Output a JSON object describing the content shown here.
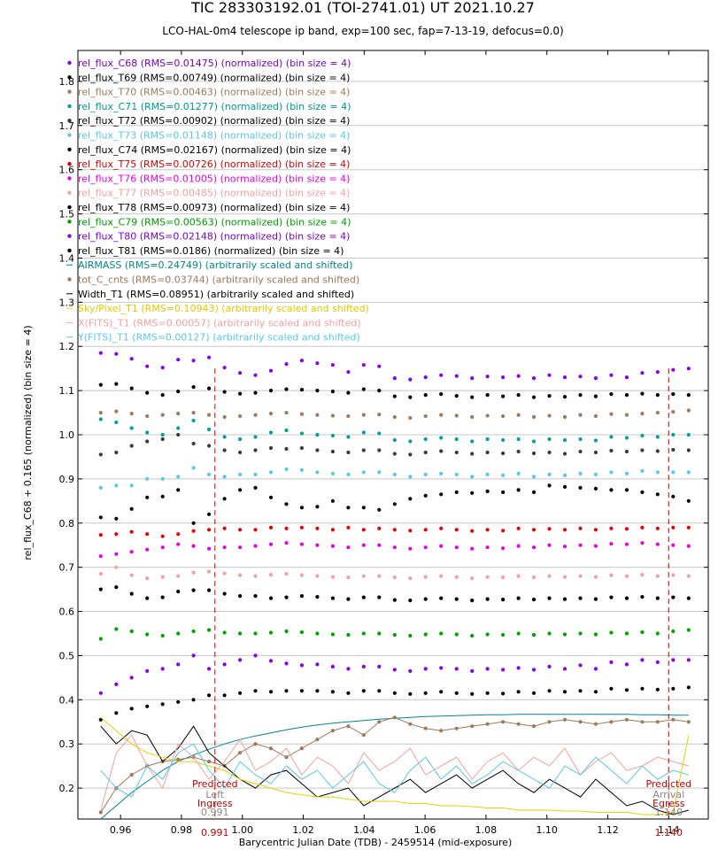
{
  "chart_data": {
    "type": "scatter",
    "title": "TIC 283303192.01 (TOI-2741.01) UT 2021.10.27",
    "subtitle": "LCO-HAL-0m4 telescope ip band, exp=100 sec, fap=7-13-19, defocus=0.0)",
    "xlabel": "Barycentric Julian Date (TDB) - 2459514 (mid-exposure)",
    "ylabel": "rel_flux_C68 + 0.165 (normalized) (bin size = 4)",
    "xlim": [
      0.946,
      1.153
    ],
    "ylim": [
      0.13,
      1.87
    ],
    "grid": true,
    "legend_position": "top-left",
    "x_ticks": [
      "0.96",
      "0.98",
      "1.00",
      "1.02",
      "1.04",
      "1.06",
      "1.08",
      "1.10",
      "1.12",
      "1.14"
    ],
    "y_ticks": [
      "0.2",
      "0.3",
      "0.4",
      "0.5",
      "0.6",
      "0.7",
      "0.8",
      "0.9",
      "1.0",
      "1.1",
      "1.2",
      "1.3",
      "1.4",
      "1.5",
      "1.6",
      "1.7",
      "1.8"
    ],
    "x_start": 0.9535,
    "x_step": 0.00508,
    "points_per_series": 39,
    "series": [
      {
        "name": "rel_flux_C68 (RMS=0.01475) (normalized) (bin size = 4)",
        "color": "#8a00e6",
        "text_color": "#7b00d4",
        "mode": "points",
        "base": 1.14,
        "values": [
          1.185,
          1.183,
          1.172,
          1.155,
          1.152,
          1.17,
          1.168,
          1.175,
          1.152,
          1.14,
          1.135,
          1.145,
          1.16,
          1.168,
          1.162,
          1.158,
          1.142,
          1.158,
          1.155,
          1.128,
          1.125,
          1.13,
          1.135,
          1.133,
          1.128,
          1.132,
          1.13,
          1.133,
          1.128,
          1.135,
          1.13,
          1.132,
          1.128,
          1.135,
          1.13,
          1.14,
          1.142,
          1.147,
          1.15
        ]
      },
      {
        "name": "rel_flux_T69 (RMS=0.00749) (normalized) (bin size = 4)",
        "color": "#000000",
        "text_color": "#000000",
        "mode": "points",
        "base": 1.09,
        "values": [
          1.113,
          1.115,
          1.105,
          1.095,
          1.09,
          1.098,
          1.108,
          1.105,
          1.097,
          1.093,
          1.095,
          1.1,
          1.103,
          1.102,
          1.1,
          1.098,
          1.095,
          1.103,
          1.1,
          1.087,
          1.085,
          1.09,
          1.092,
          1.088,
          1.085,
          1.09,
          1.087,
          1.09,
          1.085,
          1.088,
          1.086,
          1.09,
          1.087,
          1.092,
          1.09,
          1.093,
          1.09,
          1.092,
          1.09
        ]
      },
      {
        "name": "rel_flux_T70 (RMS=0.00463) (normalized) (bin size = 4)",
        "color": "#a0785a",
        "text_color": "#a0785a",
        "mode": "points",
        "base": 1.045,
        "values": [
          1.05,
          1.053,
          1.048,
          1.042,
          1.045,
          1.048,
          1.05,
          1.045,
          1.04,
          1.042,
          1.045,
          1.048,
          1.05,
          1.047,
          1.045,
          1.043,
          1.042,
          1.045,
          1.046,
          1.04,
          1.038,
          1.042,
          1.045,
          1.043,
          1.04,
          1.043,
          1.042,
          1.045,
          1.04,
          1.043,
          1.04,
          1.045,
          1.042,
          1.047,
          1.045,
          1.048,
          1.05,
          1.052,
          1.055
        ]
      },
      {
        "name": "rel_flux_C71 (RMS=0.01277) (normalized) (bin size = 4)",
        "color": "#00a0a0",
        "text_color": "#009999",
        "mode": "points",
        "base": 0.99,
        "values": [
          1.035,
          1.028,
          1.015,
          1.005,
          1.0,
          1.015,
          1.032,
          1.012,
          0.995,
          0.99,
          0.995,
          1.005,
          1.01,
          1.003,
          1.0,
          0.998,
          0.995,
          1.005,
          1.003,
          0.988,
          0.985,
          0.99,
          0.993,
          0.99,
          0.985,
          0.99,
          0.988,
          0.99,
          0.985,
          0.99,
          0.988,
          0.99,
          0.987,
          0.995,
          0.993,
          0.998,
          0.995,
          1.0,
          1.0
        ]
      },
      {
        "name": "rel_flux_T72 (RMS=0.00902) (normalized) (bin size = 4)",
        "color": "#3a3a3a",
        "text_color": "#000000",
        "mode": "points",
        "base": 0.96,
        "values": [
          0.955,
          0.96,
          0.975,
          0.985,
          0.99,
          1.0,
          0.98,
          0.975,
          0.965,
          0.96,
          0.965,
          0.97,
          0.968,
          0.97,
          0.965,
          0.962,
          0.96,
          0.965,
          0.965,
          0.957,
          0.955,
          0.96,
          0.963,
          0.96,
          0.957,
          0.96,
          0.958,
          0.962,
          0.958,
          0.96,
          0.957,
          0.962,
          0.96,
          0.964,
          0.962,
          0.965,
          0.963,
          0.966,
          0.965
        ]
      },
      {
        "name": "rel_flux_T73 (RMS=0.01148) (normalized) (bin size = 4)",
        "color": "#5ac8e6",
        "text_color": "#5ac8e6",
        "mode": "points",
        "base": 0.91,
        "values": [
          0.88,
          0.885,
          0.885,
          0.9,
          0.9,
          0.905,
          0.925,
          0.91,
          0.905,
          0.91,
          0.91,
          0.915,
          0.922,
          0.92,
          0.915,
          0.912,
          0.91,
          0.915,
          0.915,
          0.91,
          0.905,
          0.91,
          0.912,
          0.91,
          0.905,
          0.91,
          0.908,
          0.912,
          0.905,
          0.91,
          0.908,
          0.912,
          0.91,
          0.915,
          0.912,
          0.918,
          0.915,
          0.915,
          0.915
        ]
      },
      {
        "name": "rel_flux_C74 (RMS=0.02167) (normalized) (bin size = 4)",
        "color": "#000000",
        "text_color": "#000000",
        "mode": "points",
        "base": 0.86,
        "values": [
          0.813,
          0.81,
          0.832,
          0.858,
          0.86,
          0.875,
          0.8,
          0.82,
          0.855,
          0.875,
          0.88,
          0.858,
          0.843,
          0.835,
          0.837,
          0.85,
          0.835,
          0.835,
          0.83,
          0.843,
          0.855,
          0.862,
          0.865,
          0.87,
          0.868,
          0.872,
          0.87,
          0.875,
          0.87,
          0.885,
          0.882,
          0.88,
          0.878,
          0.875,
          0.875,
          0.87,
          0.865,
          0.86,
          0.85
        ]
      },
      {
        "name": "rel_flux_T75 (RMS=0.00726) (normalized) (bin size = 4)",
        "color": "#e60000",
        "text_color": "#e60000",
        "mode": "points",
        "base": 0.785,
        "values": [
          0.773,
          0.775,
          0.78,
          0.775,
          0.77,
          0.775,
          0.782,
          0.785,
          0.788,
          0.785,
          0.785,
          0.79,
          0.788,
          0.79,
          0.788,
          0.785,
          0.79,
          0.785,
          0.788,
          0.785,
          0.783,
          0.785,
          0.788,
          0.785,
          0.782,
          0.785,
          0.783,
          0.788,
          0.785,
          0.787,
          0.785,
          0.788,
          0.785,
          0.788,
          0.787,
          0.79,
          0.788,
          0.79,
          0.79
        ]
      },
      {
        "name": "rel_flux_T76 (RMS=0.01005) (normalized) (bin size = 4)",
        "color": "#e600e6",
        "text_color": "#e600e6",
        "mode": "points",
        "base": 0.745,
        "values": [
          0.725,
          0.73,
          0.735,
          0.74,
          0.745,
          0.752,
          0.748,
          0.742,
          0.745,
          0.745,
          0.748,
          0.752,
          0.755,
          0.752,
          0.75,
          0.748,
          0.745,
          0.75,
          0.75,
          0.745,
          0.742,
          0.745,
          0.748,
          0.745,
          0.742,
          0.745,
          0.743,
          0.748,
          0.745,
          0.75,
          0.747,
          0.75,
          0.748,
          0.753,
          0.752,
          0.755,
          0.752,
          0.75,
          0.748
        ]
      },
      {
        "name": "rel_flux_T77 (RMS=0.00485) (normalized) (bin size = 4)",
        "color": "#f5a0a0",
        "text_color": "#f5a0a0",
        "mode": "points",
        "base": 0.68,
        "values": [
          0.685,
          0.7,
          0.682,
          0.675,
          0.678,
          0.68,
          0.688,
          0.69,
          0.686,
          0.682,
          0.68,
          0.683,
          0.685,
          0.682,
          0.68,
          0.678,
          0.677,
          0.68,
          0.68,
          0.677,
          0.675,
          0.678,
          0.68,
          0.678,
          0.675,
          0.678,
          0.677,
          0.68,
          0.677,
          0.68,
          0.678,
          0.68,
          0.678,
          0.682,
          0.68,
          0.683,
          0.68,
          0.682,
          0.68
        ]
      },
      {
        "name": "rel_flux_T78 (RMS=0.00973) (normalized) (bin size = 4)",
        "color": "#000000",
        "text_color": "#000000",
        "mode": "points",
        "base": 0.63,
        "values": [
          0.65,
          0.655,
          0.64,
          0.63,
          0.632,
          0.645,
          0.648,
          0.648,
          0.64,
          0.635,
          0.635,
          0.63,
          0.632,
          0.635,
          0.633,
          0.63,
          0.628,
          0.632,
          0.632,
          0.626,
          0.625,
          0.628,
          0.63,
          0.628,
          0.625,
          0.628,
          0.627,
          0.63,
          0.627,
          0.63,
          0.628,
          0.63,
          0.628,
          0.632,
          0.63,
          0.633,
          0.63,
          0.632,
          0.63
        ]
      },
      {
        "name": "rel_flux_C79 (RMS=0.00563) (normalized) (bin size = 4)",
        "color": "#00a000",
        "text_color": "#00a000",
        "mode": "points",
        "base": 0.55,
        "values": [
          0.538,
          0.56,
          0.555,
          0.548,
          0.545,
          0.55,
          0.555,
          0.558,
          0.552,
          0.55,
          0.55,
          0.552,
          0.555,
          0.553,
          0.55,
          0.548,
          0.547,
          0.55,
          0.55,
          0.547,
          0.545,
          0.548,
          0.55,
          0.548,
          0.545,
          0.548,
          0.547,
          0.55,
          0.547,
          0.55,
          0.548,
          0.55,
          0.548,
          0.552,
          0.55,
          0.553,
          0.55,
          0.555,
          0.558
        ]
      },
      {
        "name": "rel_flux_T80 (RMS=0.02148) (normalized) (bin size = 4)",
        "color": "#8a00e6",
        "text_color": "#7b00d4",
        "mode": "points",
        "base": 0.47,
        "values": [
          0.415,
          0.435,
          0.45,
          0.465,
          0.47,
          0.48,
          0.5,
          0.47,
          0.48,
          0.49,
          0.5,
          0.488,
          0.482,
          0.478,
          0.48,
          0.475,
          0.47,
          0.475,
          0.475,
          0.468,
          0.465,
          0.47,
          0.472,
          0.47,
          0.465,
          0.47,
          0.468,
          0.472,
          0.468,
          0.475,
          0.47,
          0.478,
          0.47,
          0.485,
          0.48,
          0.49,
          0.485,
          0.49,
          0.49
        ]
      },
      {
        "name": "rel_flux_T81 (RMS=0.0186) (normalized) (bin size = 4)",
        "color": "#000000",
        "text_color": "#000000",
        "mode": "points",
        "base": 0.42,
        "values": [
          0.355,
          0.37,
          0.38,
          0.385,
          0.39,
          0.395,
          0.4,
          0.41,
          0.41,
          0.415,
          0.42,
          0.418,
          0.42,
          0.42,
          0.42,
          0.418,
          0.415,
          0.42,
          0.42,
          0.415,
          0.413,
          0.415,
          0.418,
          0.415,
          0.413,
          0.415,
          0.414,
          0.418,
          0.415,
          0.42,
          0.418,
          0.42,
          0.418,
          0.425,
          0.422,
          0.425,
          0.423,
          0.425,
          0.428
        ]
      },
      {
        "name": "AIRMASS (RMS=0.24749) (arbitrarily scaled and shifted)",
        "color": "#00868b",
        "text_color": "#008b8b",
        "mode": "line",
        "base": 0.28,
        "values": [
          0.13,
          0.16,
          0.19,
          0.215,
          0.24,
          0.26,
          0.275,
          0.288,
          0.3,
          0.31,
          0.318,
          0.325,
          0.332,
          0.338,
          0.343,
          0.347,
          0.35,
          0.353,
          0.356,
          0.358,
          0.36,
          0.362,
          0.363,
          0.364,
          0.365,
          0.366,
          0.366,
          0.367,
          0.367,
          0.367,
          0.367,
          0.367,
          0.367,
          0.367,
          0.367,
          0.366,
          0.366,
          0.365,
          0.365
        ]
      },
      {
        "name": "tot_C_cnts (RMS=0.03744) (arbitrarily scaled and shifted)",
        "color": "#a0785a",
        "text_color": "#a0785a",
        "mode": "linepoints",
        "base": 0.3,
        "values": [
          0.145,
          0.2,
          0.23,
          0.25,
          0.26,
          0.265,
          0.27,
          0.26,
          0.25,
          0.28,
          0.3,
          0.29,
          0.27,
          0.29,
          0.31,
          0.33,
          0.34,
          0.32,
          0.35,
          0.36,
          0.345,
          0.335,
          0.33,
          0.335,
          0.34,
          0.345,
          0.35,
          0.345,
          0.34,
          0.35,
          0.355,
          0.35,
          0.345,
          0.35,
          0.355,
          0.35,
          0.35,
          0.355,
          0.35
        ]
      },
      {
        "name": "Width_T1 (RMS=0.08951) (arbitrarily scaled and shifted)",
        "color": "#000000",
        "text_color": "#000000",
        "mode": "line",
        "base": 0.22,
        "values": [
          0.34,
          0.3,
          0.33,
          0.32,
          0.26,
          0.29,
          0.34,
          0.28,
          0.25,
          0.22,
          0.2,
          0.23,
          0.24,
          0.21,
          0.18,
          0.19,
          0.2,
          0.16,
          0.18,
          0.2,
          0.22,
          0.19,
          0.21,
          0.23,
          0.2,
          0.22,
          0.24,
          0.21,
          0.19,
          0.22,
          0.2,
          0.18,
          0.22,
          0.19,
          0.16,
          0.17,
          0.15,
          0.14,
          0.15
        ]
      },
      {
        "name": "Sky/Pixel_T1 (RMS=0.10943) (arbitrarily scaled and shifted)",
        "color": "#e6d200",
        "text_color": "#e6c800",
        "mode": "line",
        "base": 0.2,
        "values": [
          0.36,
          0.33,
          0.3,
          0.28,
          0.27,
          0.26,
          0.26,
          0.25,
          0.24,
          0.22,
          0.21,
          0.2,
          0.19,
          0.185,
          0.18,
          0.18,
          0.175,
          0.17,
          0.17,
          0.17,
          0.165,
          0.165,
          0.16,
          0.16,
          0.158,
          0.155,
          0.155,
          0.15,
          0.15,
          0.15,
          0.148,
          0.148,
          0.145,
          0.145,
          0.145,
          0.14,
          0.14,
          0.145,
          0.32
        ]
      },
      {
        "name": "X(FITS)_T1 (RMS=0.00057) (arbitrarily scaled and shifted)",
        "color": "#f5a0a0",
        "text_color": "#f5a0a0",
        "mode": "line",
        "base": 0.25,
        "values": [
          0.15,
          0.28,
          0.32,
          0.25,
          0.2,
          0.3,
          0.27,
          0.22,
          0.26,
          0.31,
          0.24,
          0.26,
          0.29,
          0.23,
          0.27,
          0.25,
          0.21,
          0.28,
          0.24,
          0.26,
          0.29,
          0.23,
          0.25,
          0.27,
          0.22,
          0.26,
          0.28,
          0.24,
          0.27,
          0.25,
          0.29,
          0.23,
          0.26,
          0.28,
          0.24,
          0.25,
          0.27,
          0.26,
          0.25
        ]
      },
      {
        "name": "Y(FITS)_T1 (RMS=0.00127) (arbitrarily scaled and shifted)",
        "color": "#5ac8e6",
        "text_color": "#5ac8e6",
        "mode": "line",
        "base": 0.22,
        "values": [
          0.24,
          0.2,
          0.18,
          0.25,
          0.22,
          0.28,
          0.3,
          0.24,
          0.2,
          0.26,
          0.23,
          0.21,
          0.25,
          0.22,
          0.24,
          0.2,
          0.23,
          0.26,
          0.21,
          0.19,
          0.24,
          0.27,
          0.22,
          0.25,
          0.21,
          0.23,
          0.26,
          0.24,
          0.22,
          0.2,
          0.25,
          0.23,
          0.27,
          0.24,
          0.21,
          0.25,
          0.22,
          0.24,
          0.23
        ]
      }
    ],
    "markers": [
      {
        "x": 0.991,
        "top_label": "Predicted",
        "mid_label": "Left",
        "bottom_label": "Ingress",
        "below_value": "0.991",
        "axis_value": "0.991",
        "color": "#cc0000"
      },
      {
        "x": 1.14,
        "top_label": "Predicted",
        "mid_label": "Arrival",
        "bottom_label": "Egress",
        "below_value": "1.140",
        "axis_value": "1.140",
        "color": "#cc0000"
      }
    ]
  }
}
